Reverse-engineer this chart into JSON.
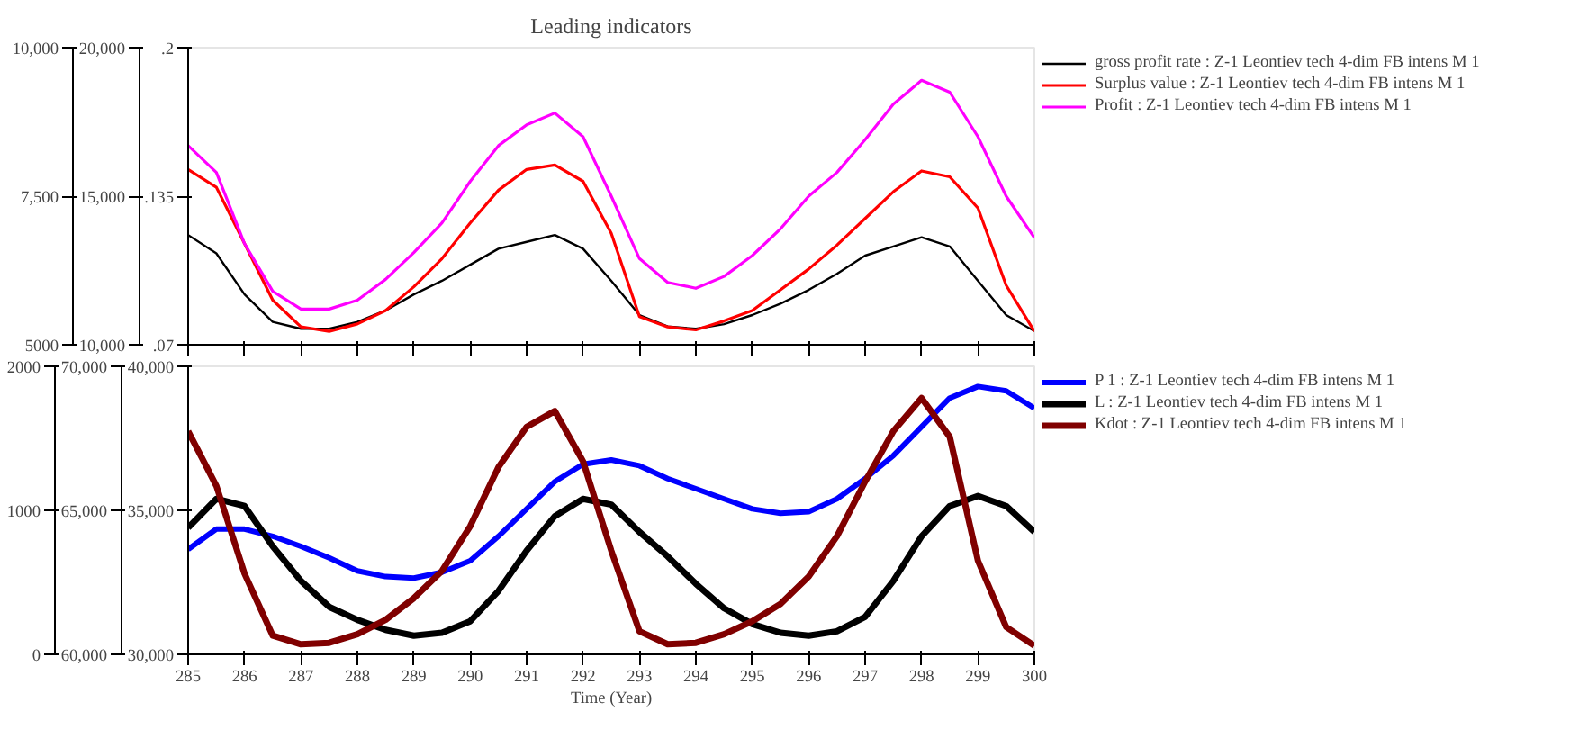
{
  "chart_data": [
    {
      "type": "line",
      "title": "Leading indicators",
      "xlim": [
        285,
        300
      ],
      "xticks": [
        285,
        286,
        287,
        288,
        289,
        290,
        291,
        292,
        293,
        294,
        295,
        296,
        297,
        298,
        299,
        300
      ],
      "tick_labels": "y",
      "ylim": [
        0.07,
        0.2
      ],
      "yticks": [
        {
          "value": 0.07,
          "label": ".07"
        },
        {
          "value": 0.135,
          "label": ".135"
        },
        {
          "value": 0.2,
          "label": ".2"
        }
      ],
      "y2lim": [
        10000,
        20000
      ],
      "y2ticks": [
        {
          "value": 10000,
          "label": "10,000"
        },
        {
          "value": 15000,
          "label": "15,000"
        },
        {
          "value": 20000,
          "label": "20,000"
        }
      ],
      "y3lim": [
        5000,
        10000
      ],
      "y3ticks": [
        5000,
        {
          "value": 7500,
          "label": "7,500"
        },
        {
          "value": 10000,
          "label": "10,000"
        }
      ],
      "legend": "right",
      "x": [
        285,
        285.5,
        286,
        286.5,
        287,
        287.5,
        288,
        288.5,
        289,
        289.5,
        290,
        290.5,
        291,
        291.5,
        292,
        292.5,
        293,
        293.5,
        294,
        294.5,
        295,
        295.5,
        296,
        296.5,
        297,
        297.5,
        298,
        298.5,
        299,
        299.5,
        300
      ],
      "series": [
        {
          "name": "gross profit rate : Z-1 Leontiev tech 4-dim FB intens M 1",
          "color": "#000000",
          "axis": "y",
          "values": [
            0.118,
            0.11,
            0.092,
            0.08,
            0.077,
            0.077,
            0.08,
            0.085,
            0.092,
            0.098,
            0.105,
            0.112,
            0.115,
            0.118,
            0.112,
            0.098,
            0.083,
            0.078,
            0.077,
            0.079,
            0.083,
            0.088,
            0.094,
            0.101,
            0.109,
            0.113,
            0.117,
            0.113,
            0.098,
            0.083,
            0.076
          ]
        },
        {
          "name": "Surplus value : Z-1 Leontiev tech 4-dim FB intens M 1",
          "color": "#ff0000",
          "axis": "y2",
          "values": [
            15900,
            15300,
            13400,
            11500,
            10600,
            10450,
            10700,
            11150,
            11950,
            12900,
            14100,
            15200,
            15900,
            16050,
            15500,
            13750,
            10950,
            10600,
            10500,
            10800,
            11150,
            11850,
            12550,
            13350,
            14250,
            15150,
            15850,
            15650,
            14600,
            12000,
            10450
          ]
        },
        {
          "name": "Profit : Z-1 Leontiev tech 4-dim FB intens M 1",
          "color": "#ff00ff",
          "axis": "y3",
          "values": [
            8350,
            7900,
            6700,
            5900,
            5600,
            5600,
            5750,
            6100,
            6550,
            7050,
            7750,
            8350,
            8700,
            8900,
            8500,
            7500,
            6450,
            6050,
            5950,
            6150,
            6500,
            6950,
            7500,
            7900,
            8450,
            9050,
            9450,
            9250,
            8500,
            7500,
            6800
          ]
        }
      ]
    },
    {
      "type": "line",
      "xlabel": "Time (Year)",
      "xlim": [
        285,
        300
      ],
      "xticks": [
        285,
        286,
        287,
        288,
        289,
        290,
        291,
        292,
        293,
        294,
        295,
        296,
        297,
        298,
        299,
        300
      ],
      "ylim": [
        30000,
        40000
      ],
      "yticks": [
        {
          "value": 30000,
          "label": "30,000"
        },
        {
          "value": 35000,
          "label": "35,000"
        },
        {
          "value": 40000,
          "label": "40,000"
        }
      ],
      "y2lim": [
        60000,
        70000
      ],
      "y2ticks": [
        {
          "value": 60000,
          "label": "60,000"
        },
        {
          "value": 65000,
          "label": "65,000"
        },
        {
          "value": 70000,
          "label": "70,000"
        }
      ],
      "y3lim": [
        0,
        2000
      ],
      "y3ticks": [
        0,
        1000,
        2000
      ],
      "legend": "right",
      "x": [
        285,
        285.5,
        286,
        286.5,
        287,
        287.5,
        288,
        288.5,
        289,
        289.5,
        290,
        290.5,
        291,
        291.5,
        292,
        292.5,
        293,
        293.5,
        294,
        294.5,
        295,
        295.5,
        296,
        296.5,
        297,
        297.5,
        298,
        298.5,
        299,
        299.5,
        300
      ],
      "series": [
        {
          "name": "P 1 : Z-1 Leontiev tech 4-dim FB intens M 1",
          "color": "#0000ff",
          "axis": "y",
          "values": [
            33650,
            34350,
            34350,
            34100,
            33750,
            33350,
            32900,
            32700,
            32650,
            32850,
            33250,
            34100,
            35050,
            36000,
            36600,
            36750,
            36550,
            36100,
            35750,
            35400,
            35050,
            34900,
            34950,
            35400,
            36100,
            36900,
            37900,
            38900,
            39300,
            39150,
            38550
          ]
        },
        {
          "name": "L : Z-1 Leontiev tech 4-dim FB intens M 1",
          "color": "#000000",
          "axis": "y2",
          "values": [
            64400,
            65400,
            65150,
            63750,
            62550,
            61650,
            61200,
            60850,
            60650,
            60750,
            61150,
            62200,
            63600,
            64800,
            65400,
            65200,
            64250,
            63400,
            62450,
            61600,
            61050,
            60750,
            60650,
            60800,
            61300,
            62550,
            64100,
            65150,
            65500,
            65150,
            64250
          ]
        },
        {
          "name": "Kdot : Z-1 Leontiev tech 4-dim FB intens M 1",
          "color": "#800000",
          "axis": "y3",
          "values": [
            1550,
            1170,
            560,
            130,
            70,
            80,
            140,
            240,
            390,
            580,
            890,
            1300,
            1580,
            1690,
            1340,
            720,
            160,
            70,
            80,
            140,
            230,
            350,
            540,
            820,
            1200,
            1550,
            1780,
            1510,
            650,
            190,
            60
          ]
        }
      ]
    }
  ]
}
